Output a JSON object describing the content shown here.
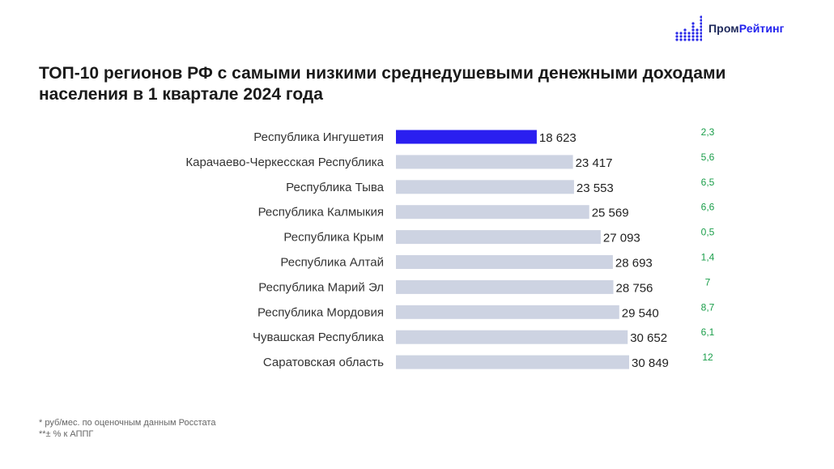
{
  "logo": {
    "word1": "Пром",
    "word2": "Рейтинг"
  },
  "title": "ТОП-10 регионов РФ с самыми низкими среднедушевыми денежными доходами населения в 1 квартале 2024 года",
  "footnotes": {
    "line1": "* руб/мес. по оценочным данным Росстата",
    "line2": "**± % к АППГ"
  },
  "colors": {
    "highlight": "#2a1ff0",
    "bar": "#cdd3e2",
    "growth": "#1a9e4a"
  },
  "chart_data": {
    "type": "bar",
    "orientation": "horizontal",
    "title": "ТОП-10 регионов РФ с самыми низкими среднедушевыми денежными доходами населения в 1 квартале 2024 года",
    "categories": [
      "Республика Ингушетия",
      "Карачаево-Черкесская Республика",
      "Республика Тыва",
      "Республика Калмыкия",
      "Республика Крым",
      "Республика Алтай",
      "Республика Марий Эл",
      "Республика Мордовия",
      "Чувашская Республика",
      "Саратовская область"
    ],
    "values": [
      18623,
      23417,
      23553,
      25569,
      27093,
      28693,
      28756,
      29540,
      30652,
      30849
    ],
    "value_labels": [
      "18 623",
      "23 417",
      "23 553",
      "25 569",
      "27 093",
      "28 693",
      "28 756",
      "29 540",
      "30 652",
      "30 849"
    ],
    "growth_labels": [
      "2,3",
      "5,6",
      "6,5",
      "6,6",
      "0,5",
      "1,4",
      "7",
      "8,7",
      "6,1",
      "12"
    ],
    "highlight_index": 0,
    "xlim": [
      0,
      30849
    ],
    "grid": false
  }
}
